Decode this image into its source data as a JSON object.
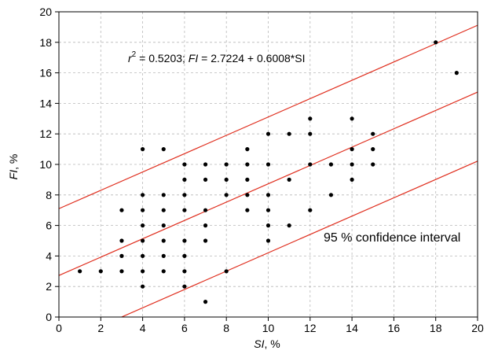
{
  "chart_data": {
    "type": "scatter",
    "xlabel_italic": "SI",
    "xlabel_rest": ", %",
    "ylabel_italic": "FI",
    "ylabel_rest": ", %",
    "xlim": [
      0,
      20
    ],
    "ylim": [
      0,
      20
    ],
    "xticks": [
      0,
      2,
      4,
      6,
      8,
      10,
      12,
      14,
      16,
      18,
      20
    ],
    "yticks": [
      0,
      2,
      4,
      6,
      8,
      10,
      12,
      14,
      16,
      18,
      20
    ],
    "grid": true,
    "points": [
      [
        1,
        3
      ],
      [
        2,
        3
      ],
      [
        3,
        3
      ],
      [
        3,
        4
      ],
      [
        3,
        5
      ],
      [
        3,
        7
      ],
      [
        4,
        2
      ],
      [
        4,
        3
      ],
      [
        4,
        4
      ],
      [
        4,
        5
      ],
      [
        4,
        6
      ],
      [
        4,
        7
      ],
      [
        4,
        8
      ],
      [
        4,
        11
      ],
      [
        5,
        3
      ],
      [
        5,
        4
      ],
      [
        5,
        5
      ],
      [
        5,
        6
      ],
      [
        5,
        7
      ],
      [
        5,
        8
      ],
      [
        5,
        11
      ],
      [
        6,
        2
      ],
      [
        6,
        3
      ],
      [
        6,
        4
      ],
      [
        6,
        5
      ],
      [
        6,
        7
      ],
      [
        6,
        8
      ],
      [
        6,
        9
      ],
      [
        6,
        10
      ],
      [
        7,
        1
      ],
      [
        7,
        5
      ],
      [
        7,
        6
      ],
      [
        7,
        7
      ],
      [
        7,
        9
      ],
      [
        7,
        10
      ],
      [
        8,
        3
      ],
      [
        8,
        8
      ],
      [
        8,
        9
      ],
      [
        8,
        10
      ],
      [
        9,
        7
      ],
      [
        9,
        8
      ],
      [
        9,
        9
      ],
      [
        9,
        10
      ],
      [
        9,
        11
      ],
      [
        10,
        5
      ],
      [
        10,
        6
      ],
      [
        10,
        7
      ],
      [
        10,
        8
      ],
      [
        10,
        10
      ],
      [
        10,
        12
      ],
      [
        11,
        6
      ],
      [
        11,
        9
      ],
      [
        11,
        12
      ],
      [
        12,
        7
      ],
      [
        12,
        10
      ],
      [
        12,
        12
      ],
      [
        12,
        13
      ],
      [
        13,
        8
      ],
      [
        13,
        10
      ],
      [
        14,
        9
      ],
      [
        14,
        10
      ],
      [
        14,
        11
      ],
      [
        14,
        13
      ],
      [
        15,
        10
      ],
      [
        15,
        11
      ],
      [
        15,
        12
      ],
      [
        18,
        18
      ],
      [
        19,
        16
      ]
    ],
    "regression": {
      "intercept": 2.7224,
      "slope": 0.6008
    },
    "confidence_lines": [
      {
        "intercept": 7.1,
        "slope": 0.6008
      },
      {
        "intercept": -1.8,
        "slope": 0.6008
      }
    ],
    "line_color": "#e03020",
    "point_color": "#000000",
    "annotation_equation": {
      "r_sym": "r",
      "r_sup": "2",
      "r_value": " = 0.5203;  ",
      "fi_sym": "FI",
      "fi_rest": " = 2.7224 + 0.6008*SI"
    },
    "annotation_ci": "95 % confidence interval"
  }
}
